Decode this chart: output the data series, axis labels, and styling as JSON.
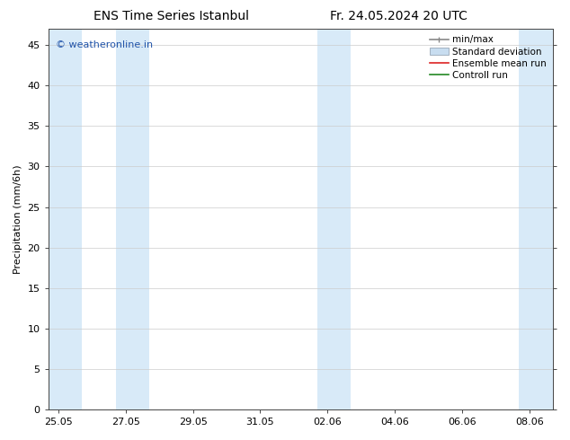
{
  "title_left": "ENS Time Series Istanbul",
  "title_right": "Fr. 24.05.2024 20 UTC",
  "ylabel": "Precipitation (mm/6h)",
  "ylim": [
    0,
    47
  ],
  "yticks": [
    0,
    5,
    10,
    15,
    20,
    25,
    30,
    35,
    40,
    45
  ],
  "xtick_labels": [
    "25.05",
    "27.05",
    "29.05",
    "31.05",
    "02.06",
    "04.06",
    "06.06",
    "08.06"
  ],
  "xtick_positions": [
    0,
    2,
    4,
    6,
    8,
    10,
    12,
    14
  ],
  "xlim": [
    -0.3,
    14.7
  ],
  "watermark": "© weatheronline.in",
  "watermark_color": "#2255aa",
  "background_color": "#ffffff",
  "plot_bg_color": "#ffffff",
  "shade_color": "#d8eaf8",
  "legend_entries": [
    "min/max",
    "Standard deviation",
    "Ensemble mean run",
    "Controll run"
  ],
  "legend_colors_line": [
    "#888888",
    "#aabbcc",
    "#dd2222",
    "#228822"
  ],
  "title_fontsize": 10,
  "ylabel_fontsize": 8,
  "tick_fontsize": 8,
  "watermark_fontsize": 8,
  "legend_fontsize": 7.5,
  "shade_pairs": [
    [
      -0.3,
      0.7
    ],
    [
      1.7,
      2.7
    ],
    [
      7.7,
      8.7
    ],
    [
      13.7,
      14.7
    ]
  ]
}
